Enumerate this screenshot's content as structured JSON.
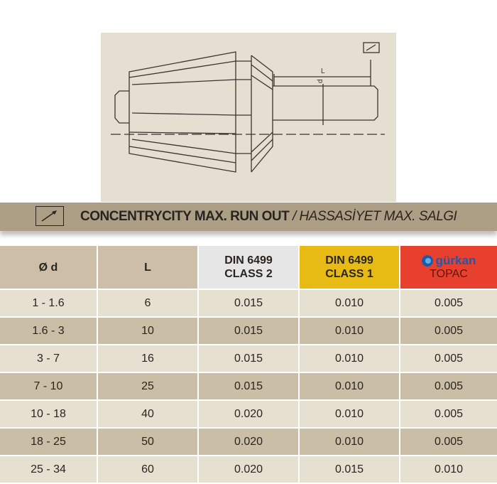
{
  "drawing": {
    "dimension_L": "L",
    "dimension_d": "d",
    "runout_symbol": "runout-arrow-icon"
  },
  "banner": {
    "icon": "runout-arrow-icon",
    "title_en": "CONCENTRYCITY MAX. RUN OUT",
    "separator": " / ",
    "title_tr": "HASSASİYET MAX. SALGI"
  },
  "table": {
    "headers": {
      "d": "Ø d",
      "L": "L",
      "class2_line1": "DIN 6499",
      "class2_line2": "CLASS 2",
      "class1_line1": "DIN 6499",
      "class1_line2": "CLASS 1",
      "brand_logo": "gürkan",
      "brand_line2": "TOPAC"
    },
    "colors": {
      "class2": "#e6e6e6",
      "class1": "#e8bb14",
      "brand": "#e8402f"
    },
    "rows": [
      [
        "1 - 1.6",
        "6",
        "0.015",
        "0.010",
        "0.005"
      ],
      [
        "1.6 - 3",
        "10",
        "0.015",
        "0.010",
        "0.005"
      ],
      [
        "3 - 7",
        "16",
        "0.015",
        "0.010",
        "0.005"
      ],
      [
        "7 - 10",
        "25",
        "0.015",
        "0.010",
        "0.005"
      ],
      [
        "10 - 18",
        "40",
        "0.020",
        "0.010",
        "0.005"
      ],
      [
        "18 - 25",
        "50",
        "0.020",
        "0.010",
        "0.005"
      ],
      [
        "25 - 34",
        "60",
        "0.020",
        "0.015",
        "0.010"
      ]
    ]
  }
}
